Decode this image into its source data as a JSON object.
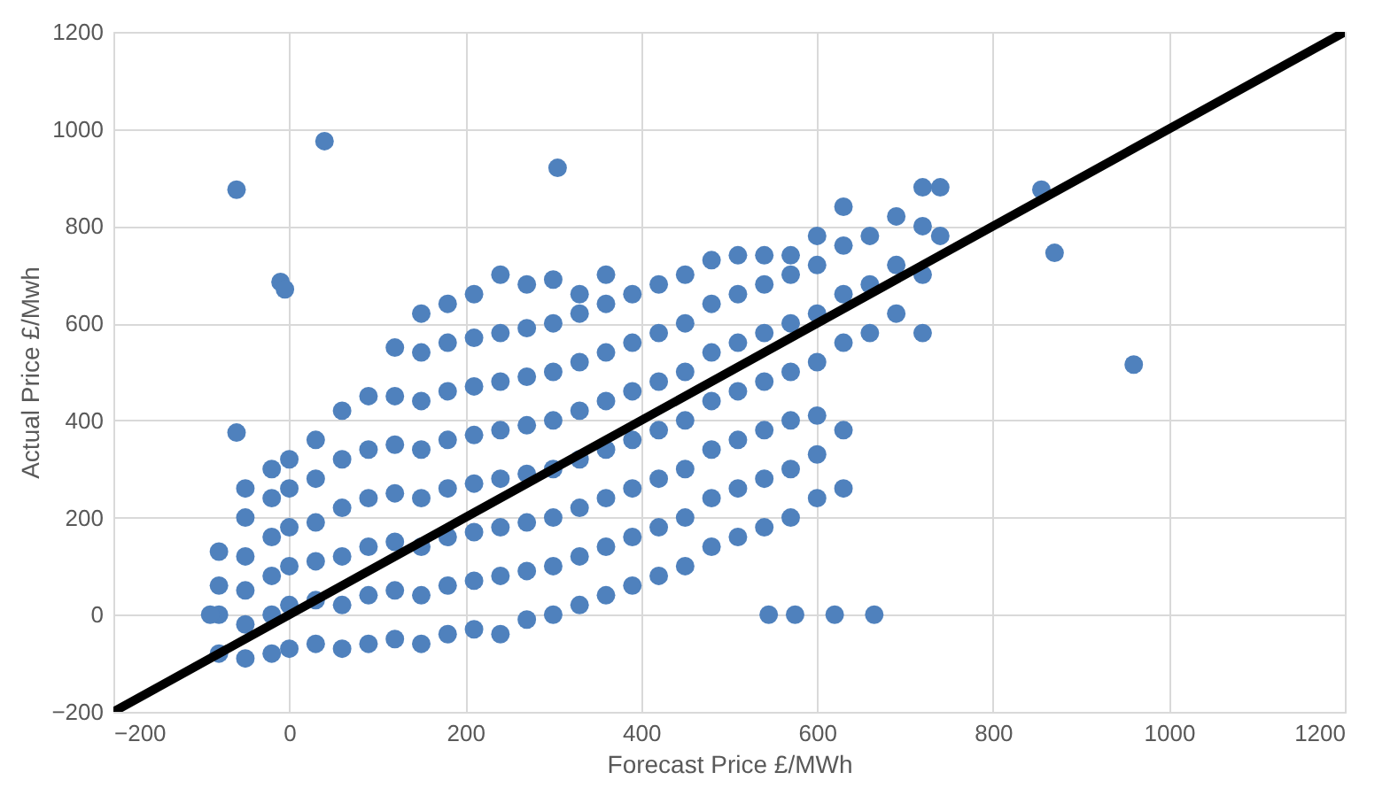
{
  "chart_data": {
    "type": "scatter",
    "xlabel": "Forecast Price £/MWh",
    "ylabel": "Actual Price £/Mwh",
    "xlim": [
      -200,
      1200
    ],
    "ylim": [
      -200,
      1200
    ],
    "xticks": [
      -200,
      0,
      200,
      400,
      600,
      800,
      1000,
      1200
    ],
    "yticks": [
      -200,
      0,
      200,
      400,
      600,
      800,
      1000,
      1200
    ],
    "grid": true,
    "series": [
      {
        "marker": "circle",
        "color": "#4f81bd",
        "x": [
          -80,
          -80,
          -80,
          -80,
          -50,
          -50,
          -50,
          -50,
          -50,
          -50,
          -20,
          -20,
          -20,
          -20,
          -20,
          -20,
          0,
          0,
          0,
          0,
          0,
          0,
          30,
          30,
          30,
          30,
          30,
          30,
          60,
          60,
          60,
          60,
          60,
          60,
          90,
          90,
          90,
          90,
          90,
          90,
          120,
          120,
          120,
          120,
          120,
          120,
          120,
          150,
          150,
          150,
          150,
          150,
          150,
          150,
          150,
          180,
          180,
          180,
          180,
          180,
          180,
          180,
          180,
          210,
          210,
          210,
          210,
          210,
          210,
          210,
          210,
          240,
          240,
          240,
          240,
          240,
          240,
          240,
          240,
          270,
          270,
          270,
          270,
          270,
          270,
          270,
          270,
          300,
          300,
          300,
          300,
          300,
          300,
          300,
          300,
          330,
          330,
          330,
          330,
          330,
          330,
          330,
          330,
          360,
          360,
          360,
          360,
          360,
          360,
          360,
          360,
          390,
          390,
          390,
          390,
          390,
          390,
          390,
          420,
          420,
          420,
          420,
          420,
          420,
          420,
          450,
          450,
          450,
          450,
          450,
          450,
          450,
          480,
          480,
          480,
          480,
          480,
          480,
          480,
          510,
          510,
          510,
          510,
          510,
          510,
          510,
          540,
          540,
          540,
          540,
          540,
          540,
          540,
          570,
          570,
          570,
          570,
          570,
          570,
          570,
          600,
          600,
          600,
          600,
          600,
          600,
          600,
          630,
          630,
          630,
          630,
          630,
          630,
          660,
          660,
          660,
          690,
          690,
          690,
          720,
          720,
          720,
          740,
          740,
          -60,
          40,
          305,
          -10,
          -5,
          -60,
          -90,
          855,
          870,
          960,
          720,
          545,
          575,
          620,
          665
        ],
        "values": [
          -80,
          0,
          60,
          130,
          -90,
          -20,
          50,
          120,
          200,
          260,
          -80,
          0,
          80,
          160,
          240,
          300,
          -70,
          20,
          100,
          180,
          260,
          320,
          -60,
          30,
          110,
          190,
          280,
          360,
          -70,
          20,
          120,
          220,
          320,
          420,
          -60,
          40,
          140,
          240,
          340,
          450,
          -50,
          50,
          150,
          250,
          350,
          450,
          550,
          -60,
          40,
          140,
          240,
          340,
          440,
          540,
          620,
          -40,
          60,
          160,
          260,
          360,
          460,
          560,
          640,
          -30,
          70,
          170,
          270,
          370,
          470,
          570,
          660,
          -40,
          80,
          180,
          280,
          380,
          480,
          580,
          700,
          -10,
          90,
          190,
          290,
          390,
          490,
          590,
          680,
          0,
          100,
          200,
          300,
          400,
          500,
          600,
          690,
          20,
          120,
          220,
          320,
          420,
          520,
          620,
          660,
          40,
          140,
          240,
          340,
          440,
          540,
          640,
          700,
          60,
          160,
          260,
          360,
          460,
          560,
          660,
          80,
          180,
          280,
          380,
          480,
          580,
          680,
          100,
          200,
          300,
          400,
          500,
          600,
          700,
          140,
          240,
          340,
          440,
          540,
          640,
          730,
          160,
          260,
          360,
          460,
          560,
          660,
          740,
          180,
          280,
          380,
          480,
          580,
          680,
          740,
          200,
          300,
          400,
          500,
          600,
          700,
          740,
          240,
          330,
          410,
          520,
          620,
          720,
          780,
          260,
          380,
          560,
          660,
          760,
          840,
          580,
          680,
          780,
          620,
          720,
          820,
          700,
          800,
          880,
          780,
          880,
          875,
          975,
          920,
          685,
          670,
          375,
          0,
          875,
          745,
          515,
          580,
          0,
          0,
          0,
          0
        ]
      },
      {
        "type": "line",
        "color": "#000000",
        "x": [
          -200,
          1200
        ],
        "values": [
          -200,
          1200
        ]
      }
    ]
  }
}
